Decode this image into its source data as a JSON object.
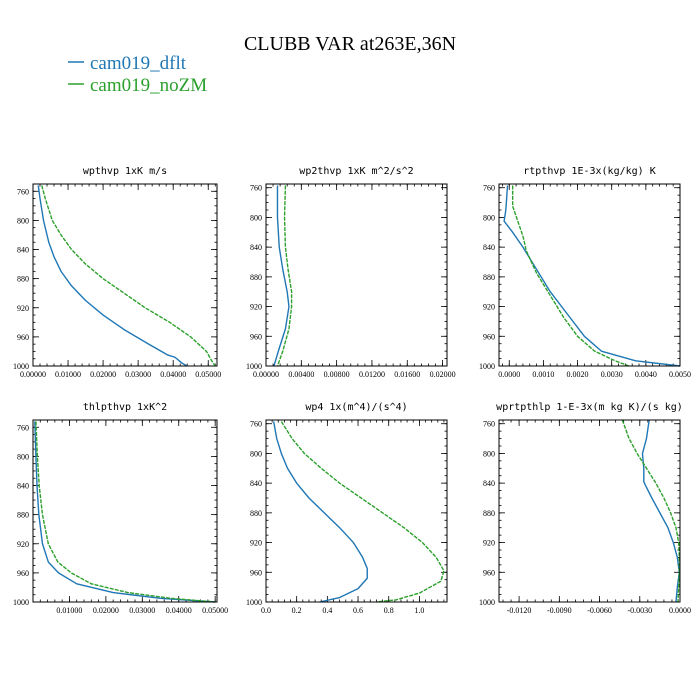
{
  "figure": {
    "title": "CLUBB VAR at263E,36N",
    "legend": [
      {
        "name": "cam019_dflt",
        "color": "#1f77b4"
      },
      {
        "name": "cam019_noZM",
        "color": "#2ca02c"
      }
    ]
  },
  "chart_data": [
    {
      "type": "line",
      "title": "wpthvp  1xK m/s",
      "xlim": [
        0,
        0.0525
      ],
      "ylim": [
        750,
        1000
      ],
      "y_inverted": true,
      "xticks": [
        "0.00000",
        "0.01000",
        "0.02000",
        "0.03000",
        "0.04000",
        "0.05000"
      ],
      "xtick_values": [
        0,
        0.01,
        0.02,
        0.03,
        0.04,
        0.05
      ],
      "yticks": [
        "760",
        "800",
        "840",
        "880",
        "920",
        "960",
        "1000"
      ],
      "ytick_values": [
        760,
        800,
        840,
        880,
        920,
        960,
        1000
      ],
      "series": [
        {
          "name": "cam019_dflt",
          "points": [
            [
              0.0015,
              752
            ],
            [
              0.002,
              770
            ],
            [
              0.003,
              800
            ],
            [
              0.0045,
              830
            ],
            [
              0.006,
              850
            ],
            [
              0.008,
              870
            ],
            [
              0.011,
              890
            ],
            [
              0.015,
              910
            ],
            [
              0.02,
              930
            ],
            [
              0.026,
              950
            ],
            [
              0.033,
              970
            ],
            [
              0.0385,
              985
            ],
            [
              0.0405,
              988
            ],
            [
              0.0425,
              996
            ],
            [
              0.044,
              1000
            ]
          ]
        },
        {
          "name": "cam019_noZM",
          "points": [
            [
              0.0025,
              752
            ],
            [
              0.0035,
              770
            ],
            [
              0.0055,
              800
            ],
            [
              0.008,
              820
            ],
            [
              0.011,
              840
            ],
            [
              0.015,
              860
            ],
            [
              0.02,
              880
            ],
            [
              0.026,
              900
            ],
            [
              0.032,
              920
            ],
            [
              0.039,
              940
            ],
            [
              0.045,
              960
            ],
            [
              0.0495,
              980
            ],
            [
              0.051,
              993
            ],
            [
              0.052,
              1000
            ]
          ]
        }
      ]
    },
    {
      "type": "line",
      "title": "wp2thvp  1xK m^2/s^2",
      "xlim": [
        0,
        0.0205
      ],
      "ylim": [
        755,
        1000
      ],
      "y_inverted": true,
      "xticks": [
        "0.00000",
        "0.00400",
        "0.00800",
        "0.01200",
        "0.01600",
        "0.02000"
      ],
      "xtick_values": [
        0,
        0.004,
        0.008,
        0.012,
        0.016,
        0.02
      ],
      "yticks": [
        "760",
        "800",
        "840",
        "880",
        "920",
        "960",
        "1000"
      ],
      "ytick_values": [
        760,
        800,
        840,
        880,
        920,
        960,
        1000
      ],
      "series": [
        {
          "name": "cam019_dflt",
          "points": [
            [
              0.0013,
              757
            ],
            [
              0.0013,
              800
            ],
            [
              0.0015,
              840
            ],
            [
              0.0019,
              870
            ],
            [
              0.0024,
              900
            ],
            [
              0.0026,
              920
            ],
            [
              0.0022,
              950
            ],
            [
              0.0014,
              980
            ],
            [
              0.0009,
              1000
            ]
          ]
        },
        {
          "name": "cam019_noZM",
          "points": [
            [
              0.0022,
              757
            ],
            [
              0.0021,
              800
            ],
            [
              0.0022,
              840
            ],
            [
              0.0025,
              870
            ],
            [
              0.0029,
              900
            ],
            [
              0.0029,
              920
            ],
            [
              0.0026,
              950
            ],
            [
              0.0019,
              980
            ],
            [
              0.0013,
              1000
            ]
          ]
        }
      ]
    },
    {
      "type": "line",
      "title": "rtpthvp  1E-3x(kg/kg) K",
      "xlim": [
        -0.0003,
        0.005
      ],
      "ylim": [
        755,
        1000
      ],
      "y_inverted": true,
      "xticks": [
        "0.0000",
        "0.0010",
        "0.0020",
        "0.0030",
        "0.0040",
        "0.0050"
      ],
      "xtick_values": [
        0,
        0.001,
        0.002,
        0.003,
        0.004,
        0.005
      ],
      "yticks": [
        "760",
        "800",
        "840",
        "880",
        "920",
        "960",
        "1000"
      ],
      "ytick_values": [
        760,
        800,
        840,
        880,
        920,
        960,
        1000
      ],
      "series": [
        {
          "name": "cam019_dflt",
          "points": [
            [
              -5e-05,
              757
            ],
            [
              -0.0001,
              790
            ],
            [
              -0.00015,
              805
            ],
            [
              0.0001,
              820
            ],
            [
              0.0004,
              840
            ],
            [
              0.0008,
              870
            ],
            [
              0.0012,
              900
            ],
            [
              0.0017,
              930
            ],
            [
              0.0022,
              960
            ],
            [
              0.0027,
              980
            ],
            [
              0.0037,
              993
            ],
            [
              0.005,
              1000
            ]
          ]
        },
        {
          "name": "cam019_noZM",
          "points": [
            [
              0.0001,
              757
            ],
            [
              0.0001,
              785
            ],
            [
              0.00025,
              805
            ],
            [
              0.0004,
              825
            ],
            [
              0.0005,
              845
            ],
            [
              0.0008,
              875
            ],
            [
              0.0012,
              905
            ],
            [
              0.0016,
              935
            ],
            [
              0.002,
              960
            ],
            [
              0.0025,
              980
            ],
            [
              0.0031,
              993
            ],
            [
              0.0035,
              1000
            ]
          ]
        }
      ]
    },
    {
      "type": "line",
      "title": "thlpthvp  1xK^2",
      "xlim": [
        0,
        0.0505
      ],
      "ylim": [
        750,
        1000
      ],
      "y_inverted": true,
      "xticks": [
        "0.01000",
        "0.02000",
        "0.03000",
        "0.04000",
        "0.05000"
      ],
      "xtick_values": [
        0.01,
        0.02,
        0.03,
        0.04,
        0.05
      ],
      "yticks": [
        "760",
        "800",
        "840",
        "880",
        "920",
        "960",
        "1000"
      ],
      "ytick_values": [
        760,
        800,
        840,
        880,
        920,
        960,
        1000
      ],
      "series": [
        {
          "name": "cam019_dflt",
          "points": [
            [
              0.0005,
              752
            ],
            [
              0.0008,
              800
            ],
            [
              0.0011,
              840
            ],
            [
              0.0016,
              880
            ],
            [
              0.0026,
              920
            ],
            [
              0.0042,
              945
            ],
            [
              0.007,
              960
            ],
            [
              0.012,
              975
            ],
            [
              0.022,
              987
            ],
            [
              0.035,
              995
            ],
            [
              0.05,
              1000
            ]
          ]
        },
        {
          "name": "cam019_noZM",
          "points": [
            [
              0.0008,
              752
            ],
            [
              0.0012,
              800
            ],
            [
              0.0017,
              840
            ],
            [
              0.0026,
              880
            ],
            [
              0.0042,
              920
            ],
            [
              0.0068,
              945
            ],
            [
              0.0105,
              960
            ],
            [
              0.016,
              975
            ],
            [
              0.026,
              987
            ],
            [
              0.038,
              995
            ],
            [
              0.05,
              1000
            ]
          ]
        }
      ]
    },
    {
      "type": "line",
      "title": "wp4   1x(m^4)/(s^4)",
      "xlim": [
        0,
        1.18
      ],
      "ylim": [
        755,
        1000
      ],
      "y_inverted": true,
      "xticks": [
        "0.0",
        "0.2",
        "0.4",
        "0.6",
        "0.8",
        "1.0"
      ],
      "xtick_values": [
        0,
        0.2,
        0.4,
        0.6,
        0.8,
        1.0
      ],
      "yticks": [
        "760",
        "800",
        "840",
        "880",
        "920",
        "960",
        "1000"
      ],
      "ytick_values": [
        760,
        800,
        840,
        880,
        920,
        960,
        1000
      ],
      "series": [
        {
          "name": "cam019_dflt",
          "points": [
            [
              0.05,
              757
            ],
            [
              0.07,
              780
            ],
            [
              0.1,
              800
            ],
            [
              0.14,
              820
            ],
            [
              0.2,
              840
            ],
            [
              0.28,
              860
            ],
            [
              0.38,
              880
            ],
            [
              0.48,
              900
            ],
            [
              0.57,
              920
            ],
            [
              0.63,
              940
            ],
            [
              0.66,
              955
            ],
            [
              0.66,
              968
            ],
            [
              0.6,
              982
            ],
            [
              0.48,
              994
            ],
            [
              0.35,
              1000
            ]
          ]
        },
        {
          "name": "cam019_noZM",
          "points": [
            [
              0.1,
              757
            ],
            [
              0.17,
              780
            ],
            [
              0.25,
              800
            ],
            [
              0.36,
              820
            ],
            [
              0.48,
              840
            ],
            [
              0.62,
              860
            ],
            [
              0.76,
              880
            ],
            [
              0.9,
              900
            ],
            [
              1.02,
              920
            ],
            [
              1.11,
              940
            ],
            [
              1.16,
              958
            ],
            [
              1.14,
              972
            ],
            [
              1.0,
              988
            ],
            [
              0.85,
              997
            ],
            [
              0.72,
              1000
            ]
          ]
        }
      ]
    },
    {
      "type": "line",
      "title": "wprtpthlp  1-E-3x(m kg K)/(s kg)",
      "xlim": [
        -0.0135,
        0.0
      ],
      "ylim": [
        755,
        1000
      ],
      "y_inverted": true,
      "xticks": [
        "-0.0120",
        "-0.0090",
        "-0.0060",
        "-0.0030",
        "0.0000"
      ],
      "xtick_values": [
        -0.012,
        -0.009,
        -0.006,
        -0.003,
        0.0
      ],
      "yticks": [
        "760",
        "800",
        "840",
        "880",
        "920",
        "960",
        "1000"
      ],
      "ytick_values": [
        760,
        800,
        840,
        880,
        920,
        960,
        1000
      ],
      "series": [
        {
          "name": "cam019_dflt",
          "points": [
            [
              -0.0023,
              755
            ],
            [
              -0.0025,
              780
            ],
            [
              -0.0028,
              800
            ],
            [
              -0.0027,
              820
            ],
            [
              -0.0027,
              838
            ],
            [
              -0.0026,
              842
            ],
            [
              -0.0021,
              860
            ],
            [
              -0.0015,
              880
            ],
            [
              -0.0009,
              900
            ],
            [
              -0.0005,
              920
            ],
            [
              -0.0002,
              940
            ],
            [
              -5e-05,
              960
            ],
            [
              -0.0002,
              980
            ],
            [
              -0.0003,
              1000
            ]
          ]
        },
        {
          "name": "cam019_noZM",
          "points": [
            [
              -0.0043,
              755
            ],
            [
              -0.0038,
              780
            ],
            [
              -0.0032,
              800
            ],
            [
              -0.0025,
              820
            ],
            [
              -0.0018,
              840
            ],
            [
              -0.0012,
              860
            ],
            [
              -0.0007,
              880
            ],
            [
              -0.0003,
              900
            ],
            [
              -0.0001,
              920
            ],
            [
              -5e-05,
              940
            ],
            [
              -5e-05,
              960
            ],
            [
              -0.0001,
              980
            ],
            [
              -0.00015,
              1000
            ]
          ]
        }
      ]
    }
  ]
}
